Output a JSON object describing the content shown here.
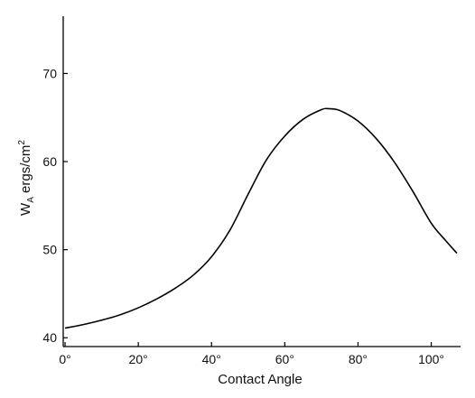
{
  "chart_data": {
    "type": "line",
    "title": "",
    "xlabel": "Contact Angle",
    "ylabel": {
      "base": "W",
      "sub": "A",
      "mid": " ergs/cm",
      "sup": "2"
    },
    "xlim": [
      -0.5,
      108
    ],
    "ylim": [
      39,
      76.5
    ],
    "xticks": [
      {
        "value": 0,
        "label": "0°"
      },
      {
        "value": 20,
        "label": "20°"
      },
      {
        "value": 40,
        "label": "40°"
      },
      {
        "value": 60,
        "label": "60°"
      },
      {
        "value": 80,
        "label": "80°"
      },
      {
        "value": 100,
        "label": "100°"
      }
    ],
    "yticks": [
      {
        "value": 40,
        "label": "40"
      },
      {
        "value": 50,
        "label": "50"
      },
      {
        "value": 60,
        "label": "60"
      },
      {
        "value": 70,
        "label": "70"
      }
    ],
    "grid": false,
    "legend": "none",
    "line_color": "#000000",
    "series": [
      {
        "x": [
          0,
          5,
          10,
          15,
          20,
          25,
          30,
          35,
          40,
          45,
          50,
          55,
          60,
          65,
          70,
          72,
          75,
          80,
          85,
          90,
          95,
          100,
          104,
          107
        ],
        "y": [
          41.1,
          41.5,
          42.0,
          42.6,
          43.4,
          44.4,
          45.6,
          47.1,
          49.2,
          52.2,
          56.3,
          60.2,
          62.9,
          64.8,
          65.9,
          66.0,
          65.8,
          64.6,
          62.6,
          59.9,
          56.6,
          53.0,
          51.0,
          49.6
        ]
      }
    ]
  }
}
